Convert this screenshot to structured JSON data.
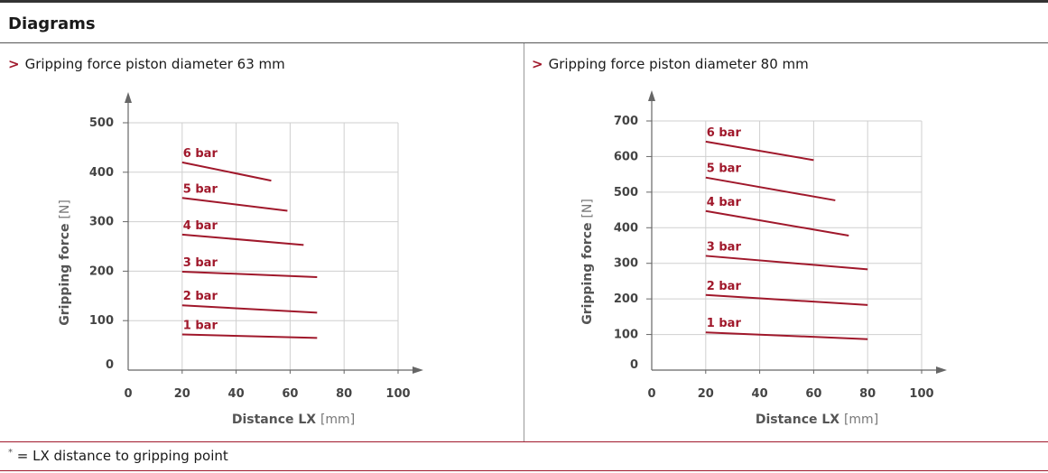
{
  "section_title": "Diagrams",
  "panel_marker": ">",
  "footnote": {
    "mark": "*",
    "text": " = LX distance to gripping point"
  },
  "colors": {
    "series": "#a0182b",
    "axis": "#666666",
    "grid": "#cfcfcf",
    "accent_rule": "#a0182b"
  },
  "chart_data": [
    {
      "type": "line",
      "title": "Gripping force piston diameter 63 mm",
      "xlabel": "Distance LX",
      "xunit": "[mm]",
      "ylabel": "Gripping force",
      "yunit": "[N]",
      "xlim": [
        0,
        100
      ],
      "ylim": [
        0,
        500
      ],
      "xticks": [
        0,
        20,
        40,
        60,
        80,
        100
      ],
      "yticks": [
        0,
        100,
        200,
        300,
        400,
        500
      ],
      "grid": true,
      "series": [
        {
          "name": "6 bar",
          "x": [
            20,
            53
          ],
          "y": [
            420,
            383
          ]
        },
        {
          "name": "5 bar",
          "x": [
            20,
            59
          ],
          "y": [
            348,
            322
          ]
        },
        {
          "name": "4 bar",
          "x": [
            20,
            65
          ],
          "y": [
            274,
            253
          ]
        },
        {
          "name": "3 bar",
          "x": [
            20,
            70
          ],
          "y": [
            199,
            188
          ]
        },
        {
          "name": "2 bar",
          "x": [
            20,
            70
          ],
          "y": [
            131,
            116
          ]
        },
        {
          "name": "1 bar",
          "x": [
            20,
            70
          ],
          "y": [
            72,
            65
          ]
        }
      ]
    },
    {
      "type": "line",
      "title": "Gripping force piston diameter 80 mm",
      "xlabel": "Distance LX",
      "xunit": "[mm]",
      "ylabel": "Gripping force",
      "yunit": "[N]",
      "xlim": [
        0,
        100
      ],
      "ylim": [
        0,
        700
      ],
      "xticks": [
        0,
        20,
        40,
        60,
        80,
        100
      ],
      "yticks": [
        0,
        100,
        200,
        300,
        400,
        500,
        600,
        700
      ],
      "grid": true,
      "series": [
        {
          "name": "6 bar",
          "x": [
            20,
            60
          ],
          "y": [
            642,
            590
          ]
        },
        {
          "name": "5 bar",
          "x": [
            20,
            68
          ],
          "y": [
            541,
            477
          ]
        },
        {
          "name": "4 bar",
          "x": [
            20,
            73
          ],
          "y": [
            447,
            378
          ]
        },
        {
          "name": "3 bar",
          "x": [
            20,
            80
          ],
          "y": [
            321,
            283
          ]
        },
        {
          "name": "2 bar",
          "x": [
            20,
            80
          ],
          "y": [
            211,
            183
          ]
        },
        {
          "name": "1 bar",
          "x": [
            20,
            80
          ],
          "y": [
            106,
            87
          ]
        }
      ]
    }
  ]
}
